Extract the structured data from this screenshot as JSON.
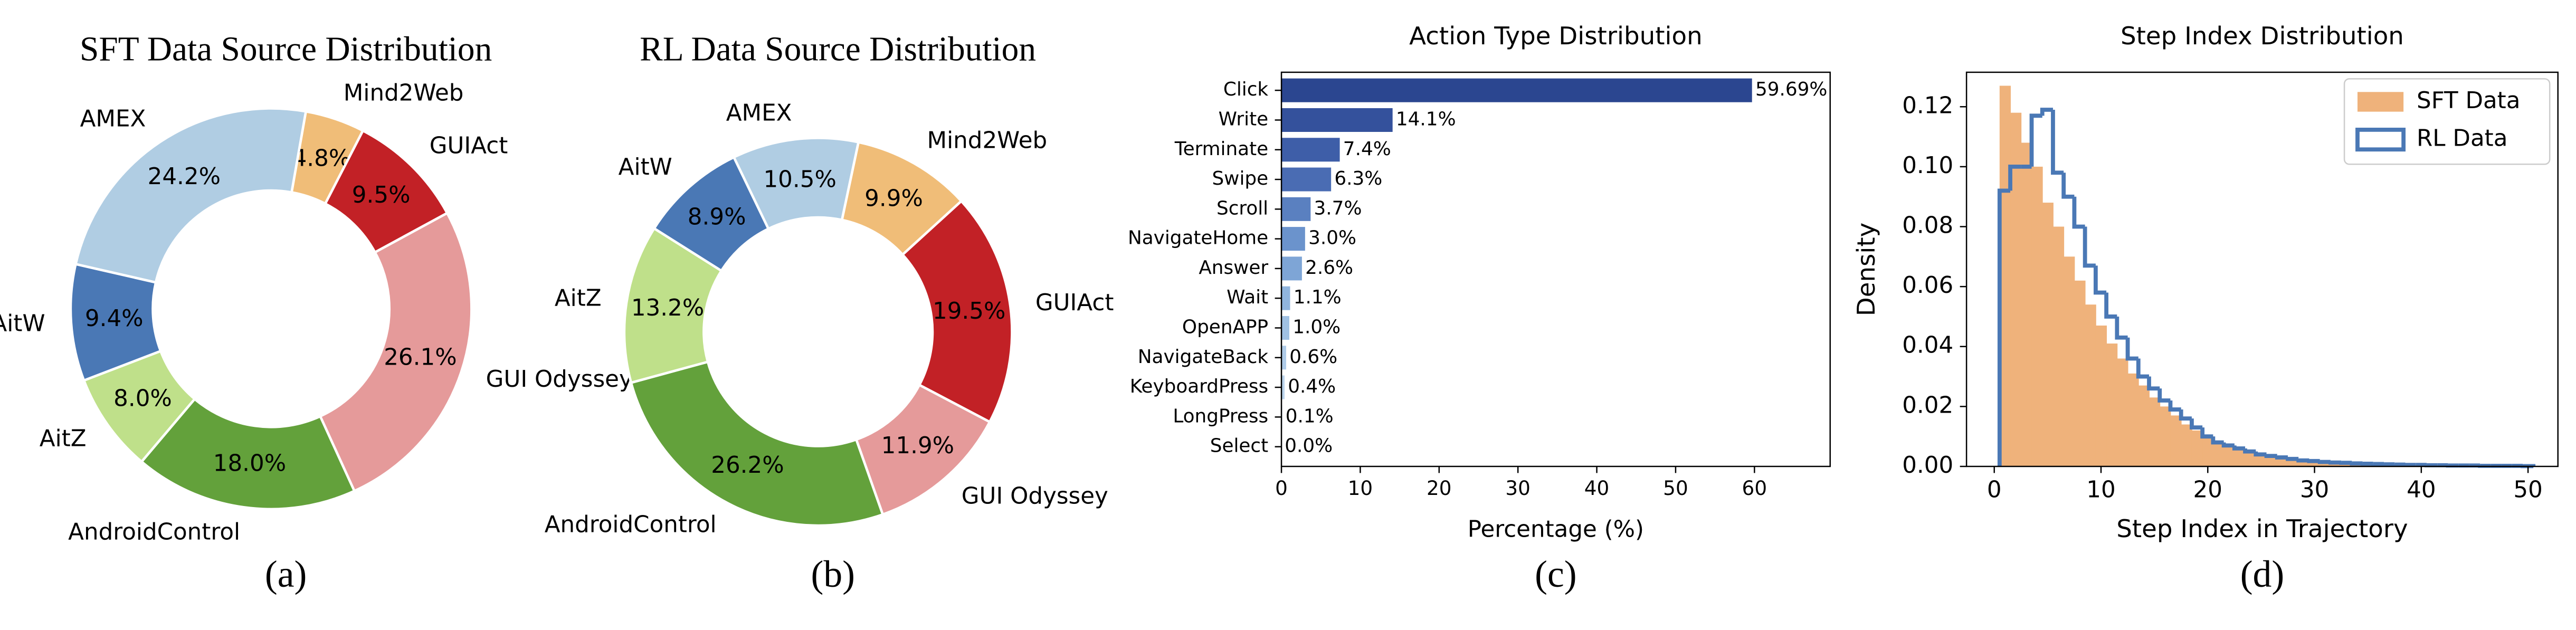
{
  "chart_data": [
    {
      "type": "pie",
      "title": "SFT Data Source Distribution",
      "caption": "(a)",
      "categories": [
        "Mind2Web",
        "GUIAct",
        "GUI Odyssey",
        "AndroidControl",
        "AitZ",
        "AitW",
        "AMEX"
      ],
      "values": [
        4.8,
        9.5,
        26.1,
        18.0,
        8.0,
        9.4,
        24.2
      ],
      "value_labels": [
        "4.8%",
        "9.5%",
        "26.1%",
        "18.0%",
        "8.0%",
        "9.4%",
        "24.2%"
      ],
      "colors": [
        "#f0bd78",
        "#c22126",
        "#e59a9a",
        "#63a13b",
        "#bfe08a",
        "#4a78b5",
        "#b0cde3"
      ]
    },
    {
      "type": "pie",
      "title": "RL Data Source Distribution",
      "caption": "(b)",
      "categories": [
        "Mind2Web",
        "GUIAct",
        "GUI Odyssey",
        "AndroidControl",
        "AitZ",
        "AitW",
        "AMEX"
      ],
      "values": [
        9.9,
        19.5,
        11.9,
        26.2,
        13.2,
        8.9,
        10.5
      ],
      "value_labels": [
        "9.9%",
        "19.5%",
        "11.9%",
        "26.2%",
        "13.2%",
        "8.9%",
        "10.5%"
      ],
      "colors": [
        "#f0bd78",
        "#c22126",
        "#e59a9a",
        "#63a13b",
        "#bfe08a",
        "#4a78b5",
        "#b0cde3"
      ]
    },
    {
      "type": "bar",
      "orientation": "horizontal",
      "title": "Action Type Distribution",
      "caption": "(c)",
      "xlabel": "Percentage (%)",
      "categories": [
        "Click",
        "Write",
        "Terminate",
        "Swipe",
        "Scroll",
        "NavigateHome",
        "Answer",
        "Wait",
        "OpenAPP",
        "NavigateBack",
        "KeyboardPress",
        "LongPress",
        "Select"
      ],
      "values": [
        59.69,
        14.1,
        7.4,
        6.3,
        3.7,
        3.0,
        2.6,
        1.1,
        1.0,
        0.6,
        0.4,
        0.1,
        0.0
      ],
      "value_labels": [
        "59.69%",
        "14.1%",
        "7.4%",
        "6.3%",
        "3.7%",
        "3.0%",
        "2.6%",
        "1.1%",
        "1.0%",
        "0.6%",
        "0.4%",
        "0.1%",
        "0.0%"
      ],
      "colors": [
        "#2b4690",
        "#34519c",
        "#3e5ea8",
        "#4a6cb3",
        "#5a80c0",
        "#6b93cc",
        "#7ea5d6",
        "#90b5de",
        "#a0c1e3",
        "#afcbe8",
        "#bcd4ec",
        "#c6dbef",
        "#d0e1f2"
      ],
      "xlim": [
        0,
        69.6
      ],
      "xticks": [
        0,
        10,
        20,
        30,
        40,
        50,
        60
      ]
    },
    {
      "type": "histogram",
      "title": "Step Index Distribution",
      "caption": "(d)",
      "xlabel": "Step Index in Trajectory",
      "ylabel": "Density",
      "legend": "upper right",
      "xlim": [
        -2.6,
        52.8
      ],
      "xticks": [
        0,
        10,
        20,
        30,
        40,
        50
      ],
      "ylim": [
        0,
        0.1315
      ],
      "yticks": [
        {
          "value": 0,
          "label": "0.00"
        },
        {
          "value": 0.02,
          "label": "0.02"
        },
        {
          "value": 0.04,
          "label": "0.04"
        },
        {
          "value": 0.06,
          "label": "0.06"
        },
        {
          "value": 0.08,
          "label": "0.08"
        },
        {
          "value": 0.1,
          "label": "0.10"
        },
        {
          "value": 0.12,
          "label": "0.12"
        }
      ],
      "series": [
        {
          "name": "SFT Data",
          "color": "#efb27b",
          "histtype": "stepfilled",
          "bins": [
            0.5,
            1.5,
            2.5,
            3.5,
            4.5,
            5.5,
            6.5,
            7.5,
            8.5,
            9.5,
            10.5,
            11.5,
            12.5,
            13.5,
            14.5,
            15.5,
            16.5,
            17.5,
            18.5,
            19.5,
            20.5,
            21.5,
            22.5,
            23.5,
            24.5,
            25.5,
            26.5,
            27.5,
            28.5,
            29.5,
            30.5,
            31.5,
            32.5,
            33.5,
            34.5,
            35.5,
            36.5,
            37.5,
            38.5,
            39.5,
            40.5,
            41.5,
            42.5,
            43.5,
            44.5,
            45.5,
            46.5,
            47.5,
            48.5,
            49.5,
            50.5
          ],
          "values": [
            0.127,
            0.118,
            0.108,
            0.1,
            0.088,
            0.08,
            0.07,
            0.062,
            0.054,
            0.047,
            0.041,
            0.036,
            0.031,
            0.027,
            0.023,
            0.02,
            0.017,
            0.014,
            0.012,
            0.01,
            0.008,
            0.007,
            0.006,
            0.005,
            0.004,
            0.0035,
            0.003,
            0.0025,
            0.002,
            0.002,
            0.0015,
            0.0013,
            0.0012,
            0.001,
            0.0009,
            0.0008,
            0.0007,
            0.0006,
            0.0005,
            0.0005,
            0.0004,
            0.0004,
            0.0003,
            0.0003,
            0.0003,
            0.0002,
            0.0002,
            0.0002,
            0.0002,
            0.0001
          ]
        },
        {
          "name": "RL Data",
          "color": "#4a78b5",
          "histtype": "step",
          "bins": [
            0.5,
            1.5,
            2.5,
            3.5,
            4.5,
            5.5,
            6.5,
            7.5,
            8.5,
            9.5,
            10.5,
            11.5,
            12.5,
            13.5,
            14.5,
            15.5,
            16.5,
            17.5,
            18.5,
            19.5,
            20.5,
            21.5,
            22.5,
            23.5,
            24.5,
            25.5,
            26.5,
            27.5,
            28.5,
            29.5,
            30.5,
            31.5,
            32.5,
            33.5,
            34.5,
            35.5,
            36.5,
            37.5,
            38.5,
            39.5,
            40.5,
            41.5,
            42.5,
            43.5,
            44.5,
            45.5,
            46.5,
            47.5,
            48.5,
            49.5,
            50.5
          ],
          "values": [
            0.092,
            0.1,
            0.1,
            0.117,
            0.119,
            0.098,
            0.09,
            0.08,
            0.067,
            0.058,
            0.05,
            0.043,
            0.036,
            0.03,
            0.026,
            0.022,
            0.019,
            0.016,
            0.013,
            0.01,
            0.008,
            0.007,
            0.006,
            0.005,
            0.004,
            0.0035,
            0.003,
            0.0025,
            0.002,
            0.0018,
            0.0015,
            0.0013,
            0.0012,
            0.001,
            0.0009,
            0.0008,
            0.0007,
            0.0006,
            0.0005,
            0.0005,
            0.0004,
            0.0004,
            0.0003,
            0.0003,
            0.0003,
            0.0002,
            0.0002,
            0.0002,
            0.0002,
            0.0001
          ]
        }
      ]
    }
  ]
}
